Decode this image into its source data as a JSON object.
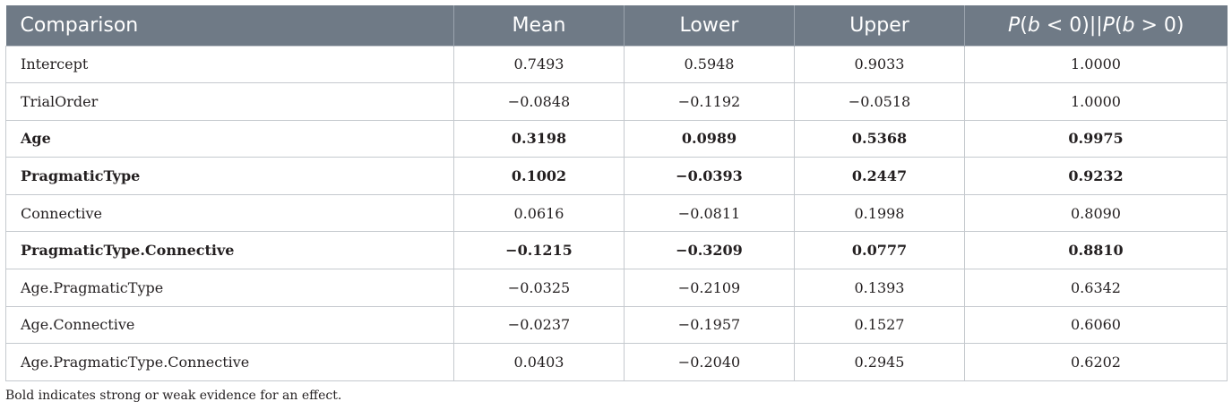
{
  "table": {
    "headers": [
      "Comparison",
      "Mean",
      "Lower",
      "Upper",
      "P(b < 0)||P(b > 0)"
    ],
    "header_last_parts": {
      "p1": "P",
      "open1": "(",
      "b1": "b",
      "rel1": " < 0)||",
      "p2": "P",
      "open2": "(",
      "b2": "b",
      "rel2": " > 0)"
    },
    "rows": [
      {
        "comparison": "Intercept",
        "mean": "0.7493",
        "lower": "0.5948",
        "upper": "0.9033",
        "prob": "1.0000",
        "bold": false
      },
      {
        "comparison": "TrialOrder",
        "mean": "−0.0848",
        "lower": "−0.1192",
        "upper": "−0.0518",
        "prob": "1.0000",
        "bold": false
      },
      {
        "comparison": "Age",
        "mean": "0.3198",
        "lower": "0.0989",
        "upper": "0.5368",
        "prob": "0.9975",
        "bold": true
      },
      {
        "comparison": "PragmaticType",
        "mean": "0.1002",
        "lower": "−0.0393",
        "upper": "0.2447",
        "prob": "0.9232",
        "bold": true
      },
      {
        "comparison": "Connective",
        "mean": "0.0616",
        "lower": "−0.0811",
        "upper": "0.1998",
        "prob": "0.8090",
        "bold": false
      },
      {
        "comparison": "PragmaticType.Connective",
        "mean": "−0.1215",
        "lower": "−0.3209",
        "upper": "0.0777",
        "prob": "0.8810",
        "bold": true
      },
      {
        "comparison": "Age.PragmaticType",
        "mean": "−0.0325",
        "lower": "−0.2109",
        "upper": "0.1393",
        "prob": "0.6342",
        "bold": false
      },
      {
        "comparison": "Age.Connective",
        "mean": "−0.0237",
        "lower": "−0.1957",
        "upper": "0.1527",
        "prob": "0.6060",
        "bold": false
      },
      {
        "comparison": "Age.PragmaticType.Connective",
        "mean": "0.0403",
        "lower": "−0.2040",
        "upper": "0.2945",
        "prob": "0.6202",
        "bold": false
      }
    ]
  },
  "footnote": "Bold indicates strong or weak evidence for an effect.",
  "colors": {
    "header_bg": "#6f7a86",
    "header_text": "#ffffff",
    "grid": "#c5c9ce",
    "body_text": "#231f20"
  }
}
